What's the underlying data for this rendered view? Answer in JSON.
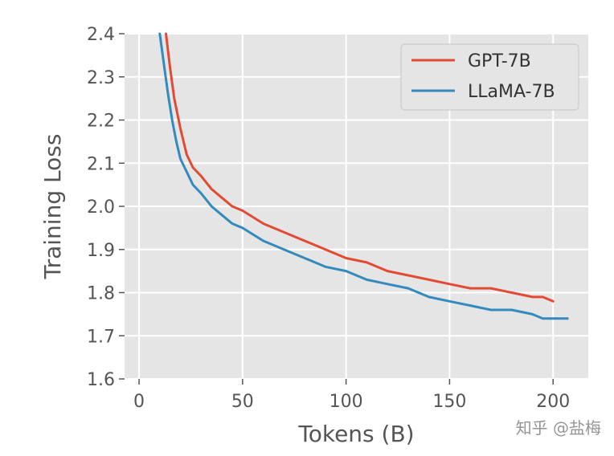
{
  "chart_data": {
    "type": "line",
    "title": "",
    "xlabel": "Tokens (B)",
    "ylabel": "Training Loss",
    "xlim": [
      -7,
      217
    ],
    "ylim": [
      1.6,
      2.4
    ],
    "x_ticks": [
      0,
      50,
      100,
      150,
      200
    ],
    "y_ticks": [
      1.6,
      1.7,
      1.8,
      1.9,
      2.0,
      2.1,
      2.2,
      2.3,
      2.4
    ],
    "x_tick_labels": [
      "0",
      "50",
      "100",
      "150",
      "200"
    ],
    "y_tick_labels": [
      "1.6",
      "1.7",
      "1.8",
      "1.9",
      "2.0",
      "2.1",
      "2.2",
      "2.3",
      "2.4"
    ],
    "grid": true,
    "legend_position": "top-right",
    "series": [
      {
        "name": "GPT-7B",
        "color": "#E24A33",
        "x": [
          13,
          15,
          17,
          20,
          23,
          26,
          30,
          35,
          40,
          45,
          50,
          60,
          70,
          80,
          90,
          100,
          110,
          120,
          130,
          140,
          150,
          160,
          170,
          180,
          190,
          195,
          200
        ],
        "y": [
          2.4,
          2.32,
          2.25,
          2.18,
          2.12,
          2.09,
          2.07,
          2.04,
          2.02,
          2.0,
          1.99,
          1.96,
          1.94,
          1.92,
          1.9,
          1.88,
          1.87,
          1.85,
          1.84,
          1.83,
          1.82,
          1.81,
          1.81,
          1.8,
          1.79,
          1.79,
          1.78
        ]
      },
      {
        "name": "LLaMA-7B",
        "color": "#348ABD",
        "x": [
          10,
          12,
          14,
          16,
          18,
          20,
          23,
          26,
          30,
          35,
          40,
          45,
          50,
          60,
          70,
          80,
          90,
          100,
          110,
          120,
          130,
          140,
          150,
          160,
          170,
          180,
          190,
          195,
          200,
          207
        ],
        "y": [
          2.4,
          2.33,
          2.26,
          2.2,
          2.15,
          2.11,
          2.08,
          2.05,
          2.03,
          2.0,
          1.98,
          1.96,
          1.95,
          1.92,
          1.9,
          1.88,
          1.86,
          1.85,
          1.83,
          1.82,
          1.81,
          1.79,
          1.78,
          1.77,
          1.76,
          1.76,
          1.75,
          1.74,
          1.74,
          1.74
        ]
      }
    ]
  },
  "watermark": {
    "text": "知乎 @盐梅"
  }
}
